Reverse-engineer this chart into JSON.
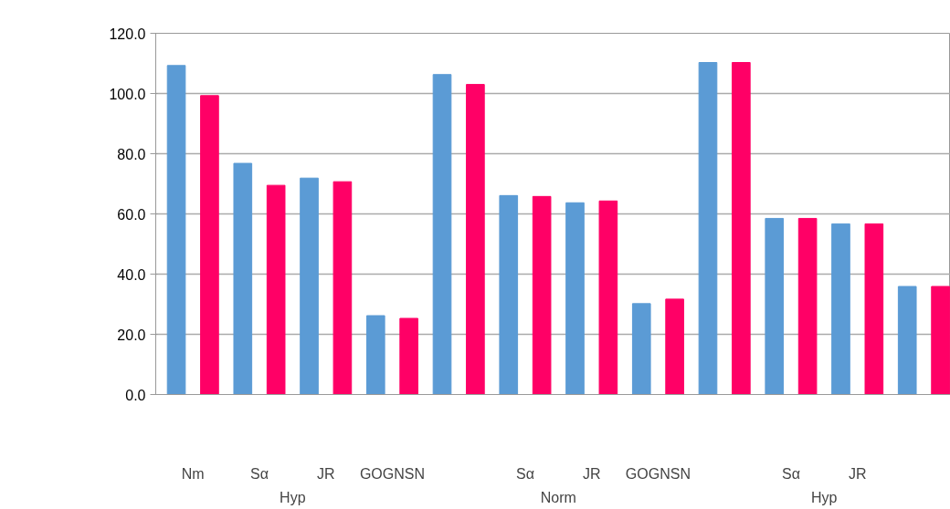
{
  "chart_data": {
    "type": "bar",
    "categories": [
      "Nm",
      "Sα",
      "JR",
      "GOGNSN",
      null,
      "Sα",
      "JR",
      "GOGNSN",
      null,
      "Sα",
      "JR",
      null
    ],
    "series": [
      {
        "color": "#5b9bd5",
        "values": [
          109.3,
          76.8,
          71.9,
          26.2,
          106.3,
          66.1,
          63.7,
          30.2,
          110.3,
          58.5,
          56.7,
          35.9
        ]
      },
      {
        "color": "#ff0066",
        "values": [
          99.3,
          69.5,
          70.7,
          25.3,
          103.0,
          65.8,
          64.3,
          31.7,
          110.3,
          58.5,
          56.7,
          35.9
        ]
      }
    ],
    "annotations": [
      "Hyp",
      "Norm",
      "Hyp"
    ],
    "ylim": [
      0,
      120
    ],
    "yticks": [
      {
        "value": 0,
        "label": "0.0"
      },
      {
        "value": 20,
        "label": "20.0"
      },
      {
        "value": 40,
        "label": "40.0"
      },
      {
        "value": 60,
        "label": "60.0"
      },
      {
        "value": 80,
        "label": "80.0"
      },
      {
        "value": 100,
        "label": "100.0"
      },
      {
        "value": 120,
        "label": "120.0"
      }
    ],
    "grid": "y"
  }
}
